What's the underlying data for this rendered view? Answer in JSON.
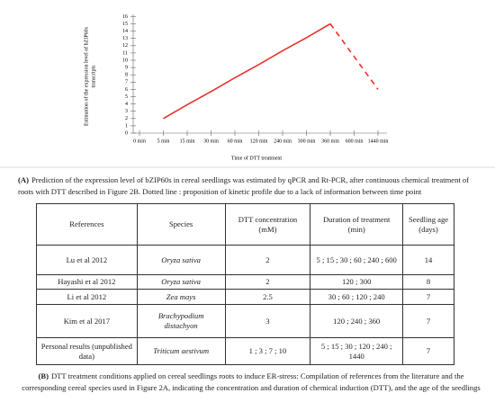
{
  "chart_data": {
    "type": "line",
    "y_label_lines": [
      "Estimation of the expression level of bZIP60s",
      "transcripts"
    ],
    "x_label": "Time of DTT treatment",
    "categories": [
      "0 min",
      "5 min",
      "15 min",
      "30 min",
      "60 min",
      "120 min",
      "240 min",
      "300 min",
      "360 min",
      "600 min",
      "1440 min"
    ],
    "series": [
      {
        "color": "#e8322c",
        "dashed": false,
        "values": [
          null,
          2,
          3.9,
          5.7,
          7.6,
          9.4,
          11.3,
          13.1,
          15,
          null,
          null
        ]
      },
      {
        "color": "#e8322c",
        "dashed": true,
        "values": [
          null,
          null,
          null,
          null,
          null,
          null,
          null,
          null,
          15,
          10.5,
          6
        ]
      }
    ],
    "ylim": [
      0,
      16
    ],
    "yticks": [
      0,
      1,
      2,
      3,
      4,
      5,
      6,
      7,
      8,
      9,
      10,
      11,
      12,
      13,
      14,
      15,
      16
    ]
  },
  "caption_a": {
    "label": "(A)",
    "text": "Prediction of the expression level of bZIP60s in cereal seedlings was estimated by qPCR and Rt-PCR, after continuous chemical treatment of roots with DTT described in Figure 2B. Dotted line : proposition of kinetic profile due to a lack of information between time point"
  },
  "table": {
    "header": [
      "References",
      "Species",
      "DTT concentration (mM)",
      "Duration of treatment (min)",
      "Seedling age (days)"
    ],
    "rows": [
      [
        "Lu et al 2012",
        "Oryza sativa",
        "2",
        "5 ; 15 ; 30 ; 60 ; 240 ; 600",
        "14"
      ],
      [
        "Hayashi et al 2012",
        "Oryza sativa",
        "2",
        "120 ; 300",
        "8"
      ],
      [
        "Li et al 2012",
        "Zea mays",
        "2.5",
        "30 ; 60 ; 120 ; 240",
        "7"
      ],
      [
        "Kim et al 2017",
        "Brachypodium distachyon",
        "3",
        "120 ; 240 ; 360",
        "7"
      ],
      [
        "Personal results (unpublished data)",
        "Triticum aestivum",
        "1 ; 3 ; 7 ; 10",
        "5 ; 15 ; 30 ; 120 ; 240 ; 1440",
        "7"
      ]
    ]
  },
  "caption_b": {
    "label": "(B)",
    "text": "DTT treatment conditions applied on cereal seedlings roots to induce ER-stress: Compilation of references from the literature and the corresponding cereal species used in Figure 2A, indicating the concentration and duration of chemical induction (DTT), and the age of the seedlings"
  }
}
